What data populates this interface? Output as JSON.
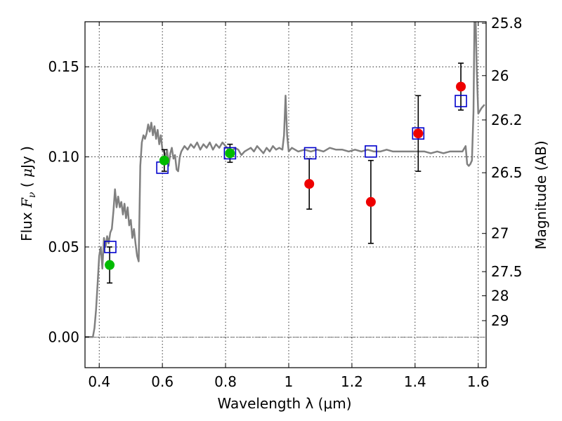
{
  "chart_data": {
    "type": "scatter",
    "title": "",
    "xlabel": "Wavelength  λ (μm)",
    "ylabel": "Flux  F_ν  ( μJy )",
    "ylabel_right": "Magnitude (AB)",
    "xlim": [
      0.355,
      1.625
    ],
    "ylim": [
      -0.017,
      0.175
    ],
    "grid": true,
    "x_ticks": [
      0.4,
      0.6,
      0.8,
      1.0,
      1.2,
      1.4,
      1.6
    ],
    "x_tick_labels": [
      "0.4",
      "0.6",
      "0.8",
      "1",
      "1.2",
      "1.4",
      "1.6"
    ],
    "y_ticks": [
      0.0,
      0.05,
      0.1,
      0.15
    ],
    "y_tick_labels": [
      "0.00",
      "0.05",
      "0.10",
      "0.15"
    ],
    "right_ticks": [
      {
        "label": "25.8",
        "flux": 0.1742
      },
      {
        "label": "26",
        "flux": 0.1451
      },
      {
        "label": "26.2",
        "flux": 0.1205
      },
      {
        "label": "26.5",
        "flux": 0.0912
      },
      {
        "label": "27",
        "flux": 0.0575
      },
      {
        "label": "27.5",
        "flux": 0.0363
      },
      {
        "label": "28",
        "flux": 0.0229
      },
      {
        "label": "29",
        "flux": 0.0091
      }
    ],
    "zero_line": 0.0,
    "series": [
      {
        "marker": "circle",
        "color": "#00bb00",
        "points": [
          {
            "x": 0.433,
            "y": 0.04,
            "err": 0.01
          },
          {
            "x": 0.606,
            "y": 0.098,
            "err": 0.006
          },
          {
            "x": 0.814,
            "y": 0.102,
            "err": 0.005
          }
        ]
      },
      {
        "marker": "circle",
        "color": "#ee0000",
        "points": [
          {
            "x": 1.065,
            "y": 0.085,
            "err": 0.014
          },
          {
            "x": 1.26,
            "y": 0.075,
            "err": 0.023
          },
          {
            "x": 1.41,
            "y": 0.113,
            "err": 0.021
          },
          {
            "x": 1.545,
            "y": 0.139,
            "err": 0.013
          }
        ]
      },
      {
        "marker": "open-square",
        "color": "#0000cc",
        "points": [
          {
            "x": 0.435,
            "y": 0.05
          },
          {
            "x": 0.6,
            "y": 0.094
          },
          {
            "x": 0.814,
            "y": 0.102
          },
          {
            "x": 1.068,
            "y": 0.102
          },
          {
            "x": 1.26,
            "y": 0.103
          },
          {
            "x": 1.41,
            "y": 0.113
          },
          {
            "x": 1.545,
            "y": 0.131
          }
        ]
      },
      {
        "type": "line",
        "color": "#808080",
        "points": [
          [
            0.355,
            0.0
          ],
          [
            0.37,
            0.0
          ],
          [
            0.38,
            0.0
          ],
          [
            0.385,
            0.005
          ],
          [
            0.39,
            0.015
          ],
          [
            0.395,
            0.03
          ],
          [
            0.4,
            0.045
          ],
          [
            0.405,
            0.05
          ],
          [
            0.41,
            0.038
          ],
          [
            0.415,
            0.055
          ],
          [
            0.42,
            0.05
          ],
          [
            0.425,
            0.056
          ],
          [
            0.43,
            0.052
          ],
          [
            0.435,
            0.058
          ],
          [
            0.44,
            0.06
          ],
          [
            0.445,
            0.07
          ],
          [
            0.45,
            0.082
          ],
          [
            0.455,
            0.072
          ],
          [
            0.46,
            0.078
          ],
          [
            0.465,
            0.072
          ],
          [
            0.47,
            0.075
          ],
          [
            0.475,
            0.068
          ],
          [
            0.48,
            0.074
          ],
          [
            0.485,
            0.066
          ],
          [
            0.49,
            0.072
          ],
          [
            0.495,
            0.062
          ],
          [
            0.5,
            0.065
          ],
          [
            0.505,
            0.055
          ],
          [
            0.51,
            0.06
          ],
          [
            0.515,
            0.052
          ],
          [
            0.52,
            0.045
          ],
          [
            0.525,
            0.042
          ],
          [
            0.53,
            0.095
          ],
          [
            0.535,
            0.108
          ],
          [
            0.54,
            0.112
          ],
          [
            0.545,
            0.11
          ],
          [
            0.55,
            0.113
          ],
          [
            0.555,
            0.118
          ],
          [
            0.56,
            0.114
          ],
          [
            0.565,
            0.119
          ],
          [
            0.57,
            0.112
          ],
          [
            0.575,
            0.117
          ],
          [
            0.58,
            0.11
          ],
          [
            0.585,
            0.115
          ],
          [
            0.59,
            0.107
          ],
          [
            0.595,
            0.112
          ],
          [
            0.6,
            0.104
          ],
          [
            0.605,
            0.103
          ],
          [
            0.61,
            0.1
          ],
          [
            0.615,
            0.104
          ],
          [
            0.62,
            0.095
          ],
          [
            0.625,
            0.102
          ],
          [
            0.63,
            0.105
          ],
          [
            0.635,
            0.099
          ],
          [
            0.64,
            0.101
          ],
          [
            0.645,
            0.093
          ],
          [
            0.65,
            0.092
          ],
          [
            0.655,
            0.1
          ],
          [
            0.66,
            0.103
          ],
          [
            0.67,
            0.106
          ],
          [
            0.68,
            0.104
          ],
          [
            0.69,
            0.107
          ],
          [
            0.7,
            0.105
          ],
          [
            0.71,
            0.108
          ],
          [
            0.72,
            0.104
          ],
          [
            0.73,
            0.107
          ],
          [
            0.74,
            0.105
          ],
          [
            0.75,
            0.108
          ],
          [
            0.76,
            0.104
          ],
          [
            0.77,
            0.107
          ],
          [
            0.78,
            0.105
          ],
          [
            0.79,
            0.108
          ],
          [
            0.8,
            0.106
          ],
          [
            0.81,
            0.104
          ],
          [
            0.82,
            0.103
          ],
          [
            0.83,
            0.105
          ],
          [
            0.84,
            0.104
          ],
          [
            0.85,
            0.101
          ],
          [
            0.86,
            0.103
          ],
          [
            0.87,
            0.104
          ],
          [
            0.88,
            0.105
          ],
          [
            0.89,
            0.103
          ],
          [
            0.9,
            0.106
          ],
          [
            0.91,
            0.104
          ],
          [
            0.92,
            0.102
          ],
          [
            0.93,
            0.105
          ],
          [
            0.94,
            0.103
          ],
          [
            0.95,
            0.106
          ],
          [
            0.96,
            0.104
          ],
          [
            0.97,
            0.105
          ],
          [
            0.98,
            0.104
          ],
          [
            0.985,
            0.112
          ],
          [
            0.99,
            0.134
          ],
          [
            0.995,
            0.112
          ],
          [
            1.0,
            0.103
          ],
          [
            1.01,
            0.105
          ],
          [
            1.02,
            0.104
          ],
          [
            1.03,
            0.103
          ],
          [
            1.05,
            0.104
          ],
          [
            1.07,
            0.103
          ],
          [
            1.09,
            0.104
          ],
          [
            1.11,
            0.103
          ],
          [
            1.13,
            0.105
          ],
          [
            1.15,
            0.104
          ],
          [
            1.17,
            0.104
          ],
          [
            1.19,
            0.103
          ],
          [
            1.21,
            0.104
          ],
          [
            1.23,
            0.103
          ],
          [
            1.25,
            0.104
          ],
          [
            1.27,
            0.103
          ],
          [
            1.29,
            0.103
          ],
          [
            1.31,
            0.104
          ],
          [
            1.33,
            0.103
          ],
          [
            1.35,
            0.103
          ],
          [
            1.37,
            0.103
          ],
          [
            1.39,
            0.103
          ],
          [
            1.41,
            0.103
          ],
          [
            1.43,
            0.103
          ],
          [
            1.45,
            0.102
          ],
          [
            1.47,
            0.103
          ],
          [
            1.49,
            0.102
          ],
          [
            1.51,
            0.103
          ],
          [
            1.53,
            0.103
          ],
          [
            1.55,
            0.103
          ],
          [
            1.56,
            0.106
          ],
          [
            1.565,
            0.096
          ],
          [
            1.57,
            0.095
          ],
          [
            1.575,
            0.096
          ],
          [
            1.58,
            0.098
          ],
          [
            1.585,
            0.125
          ],
          [
            1.588,
            0.175
          ],
          [
            1.592,
            0.175
          ],
          [
            1.595,
            0.15
          ],
          [
            1.6,
            0.124
          ],
          [
            1.61,
            0.127
          ],
          [
            1.62,
            0.129
          ]
        ]
      }
    ]
  }
}
